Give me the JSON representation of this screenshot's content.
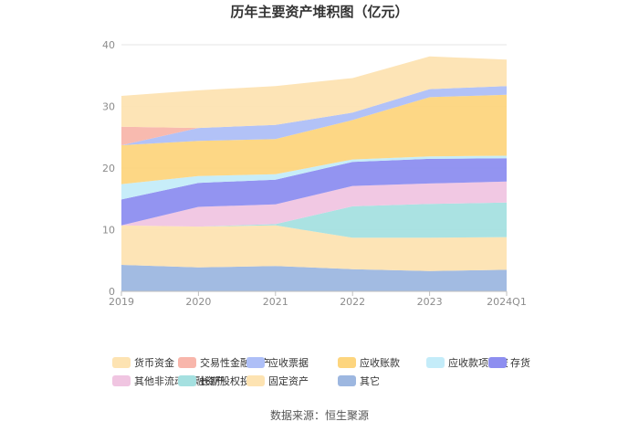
{
  "chart_data": {
    "type": "area",
    "stacked": true,
    "title": "历年主要资产堆积图（亿元）",
    "xlabel": "",
    "ylabel": "",
    "categories": [
      "2019",
      "2020",
      "2021",
      "2022",
      "2023",
      "2024Q1"
    ],
    "ylim": [
      0,
      40
    ],
    "yticks": [
      "0",
      "10",
      "20",
      "30",
      "40"
    ],
    "grid": true,
    "legend_position": "bottom",
    "series": [
      {
        "name": "其它",
        "color": "#9db7e0",
        "values": [
          4.3,
          3.9,
          4.1,
          3.6,
          3.3,
          3.5
        ]
      },
      {
        "name": "固定资产",
        "color": "#fde3b2",
        "values": [
          6.4,
          6.6,
          6.6,
          5.1,
          5.4,
          5.3
        ]
      },
      {
        "name": "长期股权投资",
        "color": "#a5e0e0",
        "values": [
          0.0,
          0.0,
          0.2,
          5.1,
          5.5,
          5.6
        ]
      },
      {
        "name": "其他非流动金融资产",
        "color": "#f0c5e1",
        "values": [
          0.0,
          3.2,
          3.2,
          3.3,
          3.3,
          3.4
        ]
      },
      {
        "name": "存货",
        "color": "#8d8ef0",
        "values": [
          4.2,
          3.9,
          4.0,
          3.9,
          4.0,
          3.8
        ]
      },
      {
        "name": "应收款项融资",
        "color": "#c4ecf9",
        "values": [
          2.5,
          1.1,
          0.9,
          0.4,
          0.4,
          0.4
        ]
      },
      {
        "name": "应收账款",
        "color": "#fdd57e",
        "values": [
          6.3,
          5.7,
          5.7,
          6.4,
          9.6,
          9.9
        ]
      },
      {
        "name": "应收票据",
        "color": "#aebff7",
        "values": [
          0.0,
          2.1,
          2.3,
          1.2,
          1.3,
          1.4
        ]
      },
      {
        "name": "交易性金融资产",
        "color": "#f8b6ab",
        "values": [
          3.0,
          0.0,
          0.0,
          0.0,
          0.0,
          0.0
        ]
      },
      {
        "name": "货币资金",
        "color": "#fde3b2",
        "values": [
          5.0,
          6.1,
          6.3,
          5.6,
          5.3,
          4.3
        ]
      }
    ],
    "legend": [
      {
        "name": "货币资金",
        "color": "#fde3b2"
      },
      {
        "name": "交易性金融资产",
        "color": "#f8b6ab"
      },
      {
        "name": "应收票据",
        "color": "#aebff7"
      },
      {
        "name": "应收账款",
        "color": "#fdd57e"
      },
      {
        "name": "应收款项融资",
        "color": "#c4ecf9"
      },
      {
        "name": "存货",
        "color": "#8d8ef0"
      },
      {
        "name": "其他非流动金融资产",
        "color": "#f0c5e1"
      },
      {
        "name": "长期股权投资",
        "color": "#a5e0e0"
      },
      {
        "name": "固定资产",
        "color": "#fde3b2"
      },
      {
        "name": "其它",
        "color": "#9db7e0"
      }
    ],
    "source": "数据来源：恒生聚源"
  }
}
